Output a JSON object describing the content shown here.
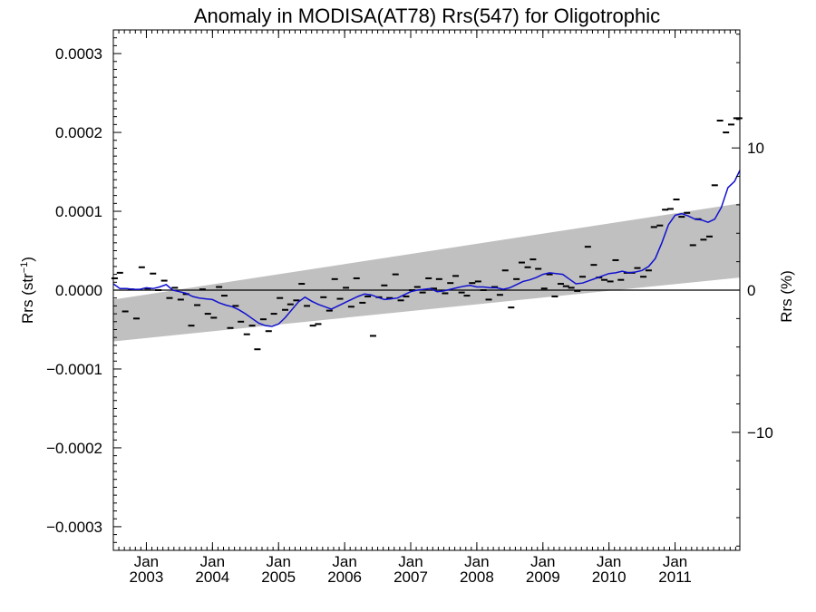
{
  "chart_data": {
    "type": "scatter",
    "title": "Anomaly in MODISA(AT78) Rrs(547) for Oligotrophic",
    "ylabel": {
      "main": "Rrs (str",
      "superscript": "−1",
      "close": ")"
    },
    "y2label": "Rrs (%)",
    "xlabel": "",
    "xlim": [
      2002.5,
      2011.98
    ],
    "ylim": [
      -0.00033,
      0.00033
    ],
    "y2lim": [
      -18.3,
      18.3
    ],
    "grid": false,
    "yticks": [
      {
        "value": 0.0003,
        "label": "0.0003"
      },
      {
        "value": 0.0002,
        "label": "0.0002"
      },
      {
        "value": 0.0001,
        "label": "0.0001"
      },
      {
        "value": 0.0,
        "label": "0.0000"
      },
      {
        "value": -0.0001,
        "label": "−0.0001"
      },
      {
        "value": -0.0002,
        "label": "−0.0002"
      },
      {
        "value": -0.0003,
        "label": "−0.0003"
      }
    ],
    "y2ticks": [
      {
        "value": 10,
        "label": "10"
      },
      {
        "value": 0,
        "label": "0"
      },
      {
        "value": -10,
        "label": "−10"
      }
    ],
    "xticks": [
      {
        "value": 2003.0,
        "month": "Jan",
        "year": "2003"
      },
      {
        "value": 2004.0,
        "month": "Jan",
        "year": "2004"
      },
      {
        "value": 2005.0,
        "month": "Jan",
        "year": "2005"
      },
      {
        "value": 2006.0,
        "month": "Jan",
        "year": "2006"
      },
      {
        "value": 2007.0,
        "month": "Jan",
        "year": "2007"
      },
      {
        "value": 2008.0,
        "month": "Jan",
        "year": "2008"
      },
      {
        "value": 2009.0,
        "month": "Jan",
        "year": "2009"
      },
      {
        "value": 2010.0,
        "month": "Jan",
        "year": "2010"
      },
      {
        "value": 2011.0,
        "month": "Jan",
        "year": "2011"
      }
    ],
    "zero_line": 0.0,
    "band": {
      "x": [
        2002.5,
        2011.98
      ],
      "upper": [
        -1.2e-05,
        0.00011
      ],
      "lower": [
        -6.5e-05,
        1.6e-05
      ],
      "color": "#c0c0c0"
    },
    "colors": {
      "band": "#c0c0c0",
      "line": "#1010d0",
      "points": "#000000",
      "axes": "#000000"
    },
    "series": [
      {
        "kind": "points",
        "x": [
          2002.52,
          2002.6,
          2002.68,
          2002.77,
          2002.85,
          2002.93,
          2003.02,
          2003.1,
          2003.18,
          2003.27,
          2003.35,
          2003.43,
          2003.52,
          2003.6,
          2003.68,
          2003.77,
          2003.85,
          2003.93,
          2004.02,
          2004.1,
          2004.18,
          2004.27,
          2004.35,
          2004.43,
          2004.52,
          2004.6,
          2004.68,
          2004.77,
          2004.85,
          2004.93,
          2005.02,
          2005.1,
          2005.18,
          2005.27,
          2005.35,
          2005.43,
          2005.52,
          2005.6,
          2005.68,
          2005.77,
          2005.85,
          2005.93,
          2006.02,
          2006.1,
          2006.18,
          2006.27,
          2006.35,
          2006.43,
          2006.52,
          2006.6,
          2006.68,
          2006.77,
          2006.85,
          2006.93,
          2007.02,
          2007.1,
          2007.18,
          2007.27,
          2007.35,
          2007.43,
          2007.52,
          2007.6,
          2007.68,
          2007.77,
          2007.85,
          2007.93,
          2008.02,
          2008.1,
          2008.18,
          2008.27,
          2008.35,
          2008.43,
          2008.52,
          2008.6,
          2008.68,
          2008.77,
          2008.85,
          2008.93,
          2009.02,
          2009.1,
          2009.18,
          2009.27,
          2009.35,
          2009.43,
          2009.52,
          2009.6,
          2009.68,
          2009.77,
          2009.85,
          2009.93,
          2010.02,
          2010.1,
          2010.18,
          2010.27,
          2010.35,
          2010.43,
          2010.52,
          2010.6,
          2010.68,
          2010.77,
          2010.85,
          2010.93,
          2011.02,
          2011.1,
          2011.18,
          2011.27,
          2011.35,
          2011.43,
          2011.52,
          2011.6,
          2011.68,
          2011.77,
          2011.85,
          2011.93,
          2011.97
        ],
        "y": [
          1.5e-05,
          2.2e-05,
          -2.7e-05,
          1e-06,
          -3.6e-05,
          2.9e-05,
          2e-06,
          2.1e-05,
          0.0,
          1.2e-05,
          -1e-05,
          3e-06,
          -1.2e-05,
          -5e-06,
          -4.5e-05,
          -1.9e-05,
          1e-06,
          -3e-05,
          -3.5e-05,
          4e-06,
          -7e-06,
          -4.8e-05,
          -2e-05,
          -4e-05,
          -5.6e-05,
          -4.5e-05,
          -7.5e-05,
          -3.7e-05,
          -5.2e-05,
          -3e-05,
          -1e-05,
          -2.5e-05,
          -1.8e-05,
          -1.3e-05,
          8e-06,
          -2e-05,
          -4.5e-05,
          -4.3e-05,
          -9e-06,
          -2.6e-05,
          1.4e-05,
          -1.1e-05,
          3e-06,
          -2.1e-05,
          1.5e-05,
          -1.6e-05,
          -8e-06,
          -5.8e-05,
          -9e-06,
          6e-06,
          -1e-05,
          2e-05,
          -1.3e-05,
          -8e-06,
          0.0,
          4e-06,
          -3e-06,
          1.5e-05,
          2e-06,
          1.4e-05,
          -4e-06,
          9e-06,
          1.8e-05,
          -3e-06,
          -7e-06,
          9e-06,
          1.1e-05,
          0.0,
          -1.2e-05,
          4e-06,
          -6e-06,
          2.5e-05,
          -2.2e-05,
          1.4e-05,
          3.5e-05,
          2.9e-05,
          3.9e-05,
          2.7e-05,
          2e-06,
          2e-05,
          -8e-06,
          8e-06,
          5e-06,
          3e-06,
          -1e-06,
          1.7e-05,
          5.5e-05,
          3.2e-05,
          1.6e-05,
          1.3e-05,
          1.1e-05,
          3.8e-05,
          1.3e-05,
          2.2e-05,
          2.2e-05,
          2.8e-05,
          1.7e-05,
          2.5e-05,
          8e-05,
          8.2e-05,
          0.000102,
          0.000103,
          0.000115,
          9.3e-05,
          9.8e-05,
          5.7e-05,
          9e-05,
          6.4e-05,
          6.8e-05,
          0.000133,
          0.000215,
          0.0002,
          0.00021,
          0.000218,
          0.000218
        ]
      },
      {
        "kind": "line",
        "x": [
          2002.5,
          2002.6,
          2002.7,
          2002.8,
          2002.9,
          2003.0,
          2003.1,
          2003.2,
          2003.3,
          2003.4,
          2003.5,
          2003.6,
          2003.7,
          2003.8,
          2003.9,
          2004.0,
          2004.1,
          2004.2,
          2004.3,
          2004.4,
          2004.5,
          2004.6,
          2004.7,
          2004.8,
          2004.9,
          2005.0,
          2005.1,
          2005.2,
          2005.3,
          2005.4,
          2005.5,
          2005.6,
          2005.7,
          2005.8,
          2005.9,
          2006.0,
          2006.1,
          2006.2,
          2006.3,
          2006.4,
          2006.5,
          2006.6,
          2006.7,
          2006.8,
          2006.9,
          2007.0,
          2007.1,
          2007.2,
          2007.3,
          2007.4,
          2007.5,
          2007.6,
          2007.7,
          2007.8,
          2007.9,
          2008.0,
          2008.1,
          2008.2,
          2008.3,
          2008.4,
          2008.5,
          2008.6,
          2008.7,
          2008.8,
          2008.9,
          2009.0,
          2009.1,
          2009.2,
          2009.3,
          2009.4,
          2009.5,
          2009.6,
          2009.7,
          2009.8,
          2009.9,
          2010.0,
          2010.1,
          2010.2,
          2010.3,
          2010.4,
          2010.5,
          2010.6,
          2010.7,
          2010.8,
          2010.9,
          2011.0,
          2011.1,
          2011.2,
          2011.3,
          2011.4,
          2011.5,
          2011.6,
          2011.7,
          2011.8,
          2011.9,
          2011.98
        ],
        "y": [
          8e-06,
          2e-06,
          2e-06,
          1e-06,
          1e-06,
          3e-06,
          2e-06,
          4e-06,
          7e-06,
          0.0,
          -2e-06,
          -4e-06,
          -8e-06,
          -1e-05,
          -1.1e-05,
          -1.2e-05,
          -1.6e-05,
          -1.9e-05,
          -2.1e-05,
          -2.5e-05,
          -3e-05,
          -3.6e-05,
          -4.2e-05,
          -4.5e-05,
          -4.6e-05,
          -4.3e-05,
          -3.5e-05,
          -2.5e-05,
          -1.5e-05,
          -9e-06,
          -1.4e-05,
          -1.8e-05,
          -2.1e-05,
          -2.4e-05,
          -2e-05,
          -1.6e-05,
          -1.2e-05,
          -8e-06,
          -5e-06,
          -6e-06,
          -9e-06,
          -1.2e-05,
          -1.1e-05,
          -1e-05,
          -6e-06,
          -2e-06,
          0.0,
          1e-06,
          2e-06,
          -2e-06,
          -1e-06,
          1e-06,
          3e-06,
          5e-06,
          6e-06,
          4e-06,
          4e-06,
          3e-06,
          3e-06,
          1e-06,
          3e-06,
          7e-06,
          1.1e-05,
          1.3e-05,
          1.6e-05,
          2e-05,
          2.2e-05,
          2.1e-05,
          2e-05,
          1.4e-05,
          8e-06,
          9e-06,
          1.2e-05,
          1.5e-05,
          1.8e-05,
          2.1e-05,
          2.2e-05,
          2.4e-05,
          2.2e-05,
          2.3e-05,
          2.5e-05,
          3e-05,
          4e-05,
          6e-05,
          8.3e-05,
          9.5e-05,
          9.7e-05,
          9.4e-05,
          9e-05,
          8.9e-05,
          8.6e-05,
          9e-05,
          0.000105,
          0.00013,
          0.000138,
          0.000152
        ]
      }
    ]
  }
}
